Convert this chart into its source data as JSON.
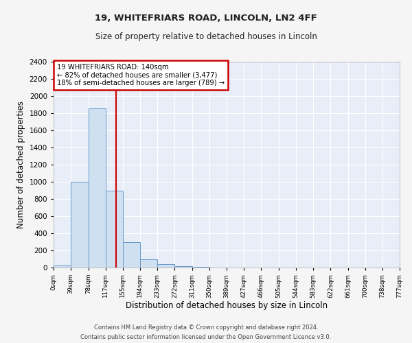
{
  "title1": "19, WHITEFRIARS ROAD, LINCOLN, LN2 4FF",
  "title2": "Size of property relative to detached houses in Lincoln",
  "xlabel": "Distribution of detached houses by size in Lincoln",
  "ylabel": "Number of detached properties",
  "bar_color": "#cfe0f0",
  "bar_edge_color": "#6699cc",
  "bins": [
    0,
    39,
    78,
    117,
    155,
    194,
    233,
    272,
    311,
    350,
    389,
    427,
    466,
    505,
    544,
    583,
    622,
    661,
    700,
    738,
    777
  ],
  "values": [
    25,
    1000,
    1860,
    900,
    295,
    100,
    40,
    20,
    10,
    0,
    0,
    0,
    0,
    0,
    0,
    0,
    0,
    0,
    0,
    0
  ],
  "tick_labels": [
    "0sqm",
    "39sqm",
    "78sqm",
    "117sqm",
    "155sqm",
    "194sqm",
    "233sqm",
    "272sqm",
    "311sqm",
    "350sqm",
    "389sqm",
    "427sqm",
    "466sqm",
    "505sqm",
    "544sqm",
    "583sqm",
    "622sqm",
    "661sqm",
    "700sqm",
    "738sqm",
    "777sqm"
  ],
  "property_size": 140,
  "vline_color": "#cc0000",
  "annotation_line1": "19 WHITEFRIARS ROAD: 140sqm",
  "annotation_line2": "← 82% of detached houses are smaller (3,477)",
  "annotation_line3": "18% of semi-detached houses are larger (789) →",
  "annotation_box_edgecolor": "#cc0000",
  "ylim_max": 2400,
  "yticks": [
    0,
    200,
    400,
    600,
    800,
    1000,
    1200,
    1400,
    1600,
    1800,
    2000,
    2200,
    2400
  ],
  "plot_bg_color": "#e8eef8",
  "fig_bg_color": "#f5f5f5",
  "grid_color": "#ffffff",
  "footer1": "Contains HM Land Registry data © Crown copyright and database right 2024.",
  "footer2": "Contains public sector information licensed under the Open Government Licence v3.0."
}
